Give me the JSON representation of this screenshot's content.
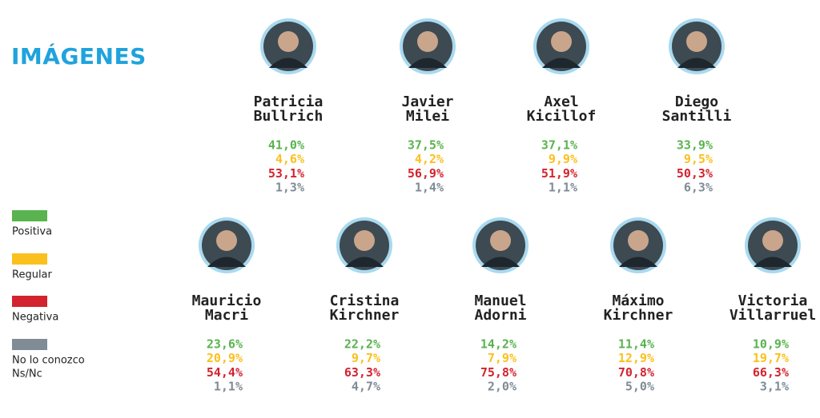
{
  "title": "IMÁGENES",
  "legend": [
    {
      "label": [
        "Positiva"
      ],
      "color": "#59b34f"
    },
    {
      "label": [
        "Regular"
      ],
      "color": "#fbc01d"
    },
    {
      "label": [
        "Negativa"
      ],
      "color": "#d3232f"
    },
    {
      "label": [
        "No lo conozco",
        "Ns/Nc"
      ],
      "color": "#7f8c96"
    }
  ],
  "people": [
    {
      "name": [
        "Patricia",
        "Bullrich"
      ],
      "values": [
        "41,0%",
        "4,6%",
        "53,1%",
        "1,3%"
      ]
    },
    {
      "name": [
        "Javier",
        "Milei"
      ],
      "values": [
        "37,5%",
        "4,2%",
        "56,9%",
        "1,4%"
      ]
    },
    {
      "name": [
        "Axel",
        "Kicillof"
      ],
      "values": [
        "37,1%",
        "9,9%",
        "51,9%",
        "1,1%"
      ]
    },
    {
      "name": [
        "Diego",
        "Santilli"
      ],
      "values": [
        "33,9%",
        "9,5%",
        "50,3%",
        "6,3%"
      ]
    },
    {
      "name": [
        "Mauricio",
        "Macri"
      ],
      "values": [
        "23,6%",
        "20,9%",
        "54,4%",
        "1,1%"
      ]
    },
    {
      "name": [
        "Cristina",
        "Kirchner"
      ],
      "values": [
        "22,2%",
        "9,7%",
        "63,3%",
        "4,7%"
      ]
    },
    {
      "name": [
        "Manuel",
        "Adorni"
      ],
      "values": [
        "14,2%",
        "7,9%",
        "75,8%",
        "2,0%"
      ]
    },
    {
      "name": [
        "Máximo",
        "Kirchner"
      ],
      "values": [
        "11,4%",
        "12,9%",
        "70,8%",
        "5,0%"
      ]
    },
    {
      "name": [
        "Victoria",
        "Villarruel"
      ],
      "values": [
        "10,9%",
        "19,7%",
        "66,3%",
        "3,1%"
      ]
    }
  ]
}
